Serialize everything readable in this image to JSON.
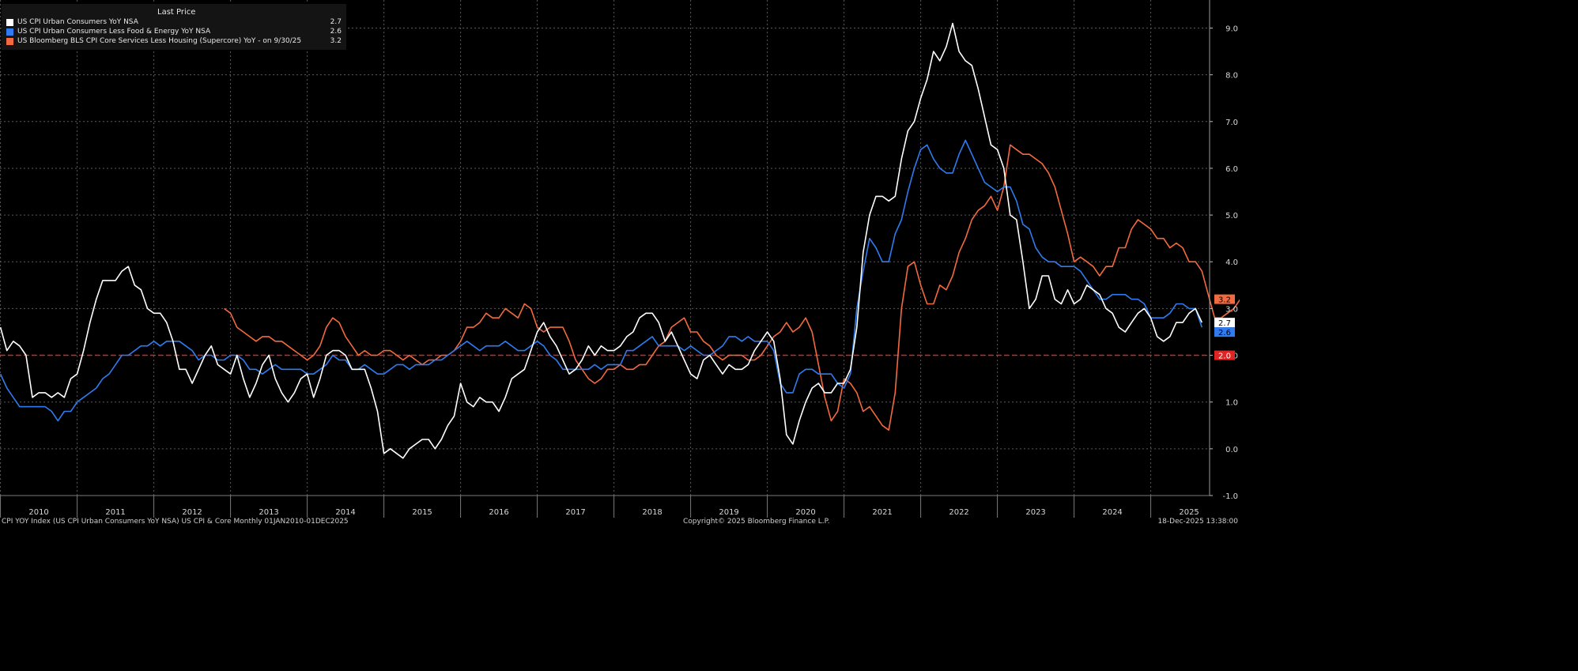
{
  "legend": {
    "header": "Last Price",
    "items": [
      {
        "name": "US CPI Urban Consumers YoY NSA",
        "value": "2.7",
        "color": "#ffffff"
      },
      {
        "name": "US CPI Urban Consumers Less Food & Energy YoY NSA",
        "value": "2.6",
        "color": "#2f7bef"
      },
      {
        "name": "US Bloomberg BLS CPI Core Services Less Housing (Supercore) YoY -  on 9/30/25",
        "value": "3.2",
        "color": "#f26a3f"
      }
    ]
  },
  "footer": {
    "left": "CPI YOY Index (US CPI Urban Consumers YoY NSA) US CPI & Core Monthly 01JAN2010-01DEC2025",
    "center": "Copyright© 2025 Bloomberg Finance L.P.",
    "right": "18-Dec-2025 13:38:00"
  },
  "chart_data": {
    "type": "line",
    "x_axis": {
      "type": "date",
      "labels": [
        "2010",
        "2011",
        "2012",
        "2013",
        "2014",
        "2015",
        "2016",
        "2017",
        "2018",
        "2019",
        "2020",
        "2021",
        "2022",
        "2023",
        "2024",
        "2025"
      ]
    },
    "y_axis": {
      "range": [
        -1,
        9.6
      ],
      "side": "right",
      "ticks": [
        "-1.0",
        "0.0",
        "1.0",
        "2.0",
        "3.0",
        "4.0",
        "5.0",
        "6.0",
        "7.0",
        "8.0",
        "9.0"
      ]
    },
    "grid": true,
    "reference_line": {
      "value": 2.0,
      "label": "2.0",
      "color": "#e02424",
      "style": "dashed"
    },
    "last_value_tags": [
      {
        "label": "3.2",
        "value": 3.2,
        "bg": "#f26a3f",
        "fg": "#000000"
      },
      {
        "label": "2.7",
        "value": 2.7,
        "bg": "#ffffff",
        "fg": "#000000"
      },
      {
        "label": "2.6",
        "value": 2.6,
        "bg": "#2f7bef",
        "fg": "#000000"
      }
    ],
    "series": [
      {
        "name": "US CPI Urban Consumers YoY NSA",
        "color": "#ffffff",
        "start": "2010-01",
        "step": "monthly",
        "values": [
          2.6,
          2.1,
          2.3,
          2.2,
          2.0,
          1.1,
          1.2,
          1.2,
          1.1,
          1.2,
          1.1,
          1.5,
          1.6,
          2.1,
          2.7,
          3.2,
          3.6,
          3.6,
          3.6,
          3.8,
          3.9,
          3.5,
          3.4,
          3.0,
          2.9,
          2.9,
          2.7,
          2.3,
          1.7,
          1.7,
          1.4,
          1.7,
          2.0,
          2.2,
          1.8,
          1.7,
          1.6,
          2.0,
          1.5,
          1.1,
          1.4,
          1.8,
          2.0,
          1.5,
          1.2,
          1.0,
          1.2,
          1.5,
          1.6,
          1.1,
          1.5,
          2.0,
          2.1,
          2.1,
          2.0,
          1.7,
          1.7,
          1.7,
          1.3,
          0.8,
          -0.1,
          0.0,
          -0.1,
          -0.2,
          0.0,
          0.1,
          0.2,
          0.2,
          0.0,
          0.2,
          0.5,
          0.7,
          1.4,
          1.0,
          0.9,
          1.1,
          1.0,
          1.0,
          0.8,
          1.1,
          1.5,
          1.6,
          1.7,
          2.1,
          2.5,
          2.7,
          2.4,
          2.2,
          1.9,
          1.6,
          1.7,
          1.9,
          2.2,
          2.0,
          2.2,
          2.1,
          2.1,
          2.2,
          2.4,
          2.5,
          2.8,
          2.9,
          2.9,
          2.7,
          2.3,
          2.5,
          2.2,
          1.9,
          1.6,
          1.5,
          1.9,
          2.0,
          1.8,
          1.6,
          1.8,
          1.7,
          1.7,
          1.8,
          2.1,
          2.3,
          2.5,
          2.3,
          1.5,
          0.3,
          0.1,
          0.6,
          1.0,
          1.3,
          1.4,
          1.2,
          1.2,
          1.4,
          1.4,
          1.7,
          2.6,
          4.2,
          5.0,
          5.4,
          5.4,
          5.3,
          5.4,
          6.2,
          6.8,
          7.0,
          7.5,
          7.9,
          8.5,
          8.3,
          8.6,
          9.1,
          8.5,
          8.3,
          8.2,
          7.7,
          7.1,
          6.5,
          6.4,
          6.0,
          5.0,
          4.9,
          4.0,
          3.0,
          3.2,
          3.7,
          3.7,
          3.2,
          3.1,
          3.4,
          3.1,
          3.2,
          3.5,
          3.4,
          3.3,
          3.0,
          2.9,
          2.6,
          2.5,
          2.7,
          2.9,
          3.0,
          2.8,
          2.4,
          2.3,
          2.4,
          2.7,
          2.7,
          2.9,
          3.0,
          2.7
        ]
      },
      {
        "name": "US CPI Urban Consumers Less Food & Energy YoY NSA",
        "color": "#2f7bef",
        "start": "2010-01",
        "step": "monthly",
        "values": [
          1.6,
          1.3,
          1.1,
          0.9,
          0.9,
          0.9,
          0.9,
          0.9,
          0.8,
          0.6,
          0.8,
          0.8,
          1.0,
          1.1,
          1.2,
          1.3,
          1.5,
          1.6,
          1.8,
          2.0,
          2.0,
          2.1,
          2.2,
          2.2,
          2.3,
          2.2,
          2.3,
          2.3,
          2.3,
          2.2,
          2.1,
          1.9,
          2.0,
          2.0,
          1.9,
          1.9,
          2.0,
          2.0,
          1.9,
          1.7,
          1.7,
          1.6,
          1.7,
          1.8,
          1.7,
          1.7,
          1.7,
          1.7,
          1.6,
          1.6,
          1.7,
          1.8,
          2.0,
          1.9,
          1.9,
          1.7,
          1.7,
          1.8,
          1.7,
          1.6,
          1.6,
          1.7,
          1.8,
          1.8,
          1.7,
          1.8,
          1.8,
          1.8,
          1.9,
          1.9,
          2.0,
          2.1,
          2.2,
          2.3,
          2.2,
          2.1,
          2.2,
          2.2,
          2.2,
          2.3,
          2.2,
          2.1,
          2.1,
          2.2,
          2.3,
          2.2,
          2.0,
          1.9,
          1.7,
          1.7,
          1.7,
          1.7,
          1.7,
          1.8,
          1.7,
          1.8,
          1.8,
          1.8,
          2.1,
          2.1,
          2.2,
          2.3,
          2.4,
          2.2,
          2.2,
          2.2,
          2.2,
          2.1,
          2.2,
          2.1,
          2.0,
          2.0,
          2.1,
          2.2,
          2.4,
          2.4,
          2.3,
          2.4,
          2.3,
          2.3,
          2.3,
          2.1,
          1.4,
          1.2,
          1.2,
          1.6,
          1.7,
          1.7,
          1.6,
          1.6,
          1.6,
          1.4,
          1.3,
          1.6,
          3.0,
          3.8,
          4.5,
          4.3,
          4.0,
          4.0,
          4.6,
          4.9,
          5.5,
          6.0,
          6.4,
          6.5,
          6.2,
          6.0,
          5.9,
          5.9,
          6.3,
          6.6,
          6.3,
          6.0,
          5.7,
          5.6,
          5.5,
          5.6,
          5.6,
          5.3,
          4.8,
          4.7,
          4.3,
          4.1,
          4.0,
          4.0,
          3.9,
          3.9,
          3.9,
          3.8,
          3.6,
          3.4,
          3.2,
          3.2,
          3.3,
          3.3,
          3.3,
          3.2,
          3.2,
          3.1,
          2.8,
          2.8,
          2.8,
          2.9,
          3.1,
          3.1,
          3.0,
          3.0,
          2.6
        ]
      },
      {
        "name": "US Bloomberg BLS CPI Core Services Less Housing (Supercore) YoY -  on 9/30/25",
        "color": "#f26a3f",
        "start": "2012-12",
        "step": "monthly",
        "values": [
          3.0,
          2.9,
          2.6,
          2.5,
          2.4,
          2.3,
          2.4,
          2.4,
          2.3,
          2.3,
          2.2,
          2.1,
          2.0,
          1.9,
          2.0,
          2.2,
          2.6,
          2.8,
          2.7,
          2.4,
          2.2,
          2.0,
          2.1,
          2.0,
          2.0,
          2.1,
          2.1,
          2.0,
          1.9,
          2.0,
          1.9,
          1.8,
          1.9,
          1.9,
          2.0,
          2.0,
          2.1,
          2.3,
          2.6,
          2.6,
          2.7,
          2.9,
          2.8,
          2.8,
          3.0,
          2.9,
          2.8,
          3.1,
          3.0,
          2.6,
          2.5,
          2.6,
          2.6,
          2.6,
          2.3,
          1.9,
          1.7,
          1.5,
          1.4,
          1.5,
          1.7,
          1.7,
          1.8,
          1.7,
          1.7,
          1.8,
          1.8,
          2.0,
          2.2,
          2.3,
          2.6,
          2.7,
          2.8,
          2.5,
          2.5,
          2.3,
          2.2,
          2.0,
          1.9,
          2.0,
          2.0,
          2.0,
          1.9,
          1.9,
          2.0,
          2.2,
          2.4,
          2.5,
          2.7,
          2.5,
          2.6,
          2.8,
          2.5,
          1.8,
          1.1,
          0.6,
          0.8,
          1.5,
          1.4,
          1.2,
          0.8,
          0.9,
          0.7,
          0.5,
          0.4,
          1.2,
          3.0,
          3.9,
          4.0,
          3.5,
          3.1,
          3.1,
          3.5,
          3.4,
          3.7,
          4.2,
          4.5,
          4.9,
          5.1,
          5.2,
          5.4,
          5.1,
          5.6,
          6.5,
          6.4,
          6.3,
          6.3,
          6.2,
          6.1,
          5.9,
          5.6,
          5.1,
          4.6,
          4.0,
          4.1,
          4.0,
          3.9,
          3.7,
          3.9,
          3.9,
          4.3,
          4.3,
          4.7,
          4.9,
          4.8,
          4.7,
          4.5,
          4.5,
          4.3,
          4.4,
          4.3,
          4.0,
          4.0,
          3.8,
          3.3,
          2.8,
          2.8,
          2.9,
          3.0,
          3.2,
          3.2,
          3.2
        ]
      }
    ]
  }
}
